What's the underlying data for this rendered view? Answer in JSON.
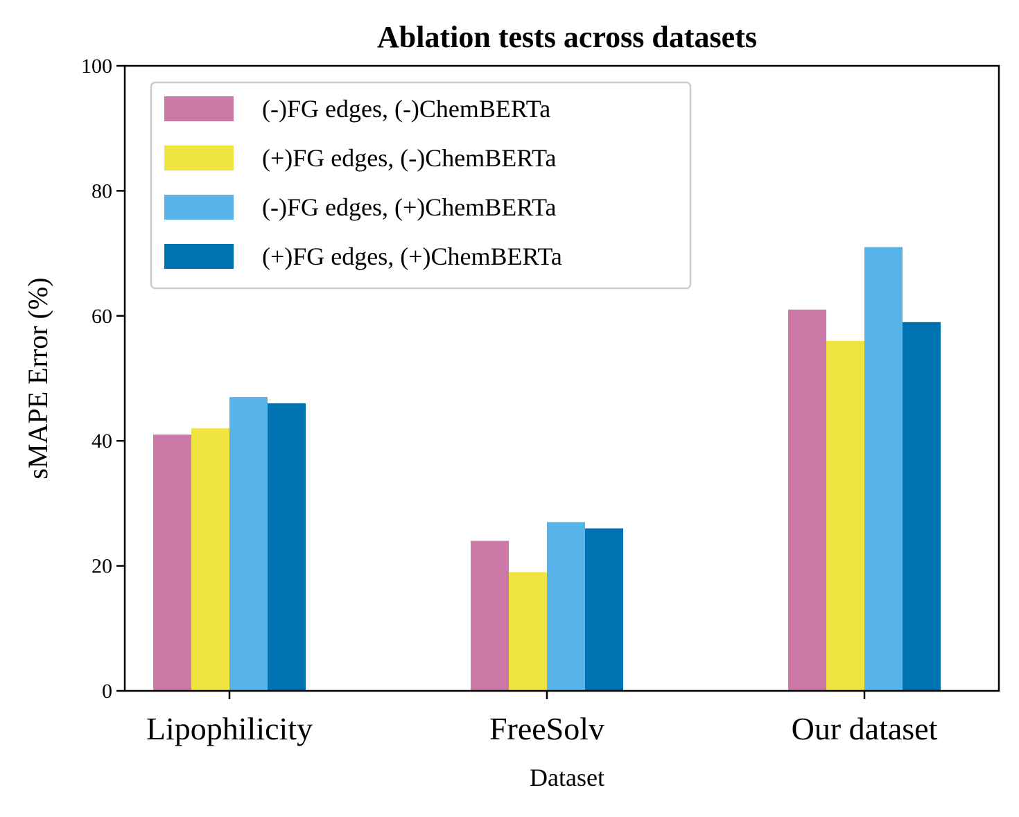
{
  "chart_data": {
    "type": "bar",
    "title": "Ablation tests across datasets",
    "xlabel": "Dataset",
    "ylabel": "sMAPE Error (%)",
    "ylim": [
      0,
      100
    ],
    "yticks": [
      "0",
      "20",
      "40",
      "60",
      "80",
      "100"
    ],
    "categories": [
      "Lipophilicity",
      "FreeSolv",
      "Our dataset"
    ],
    "legend_position": "top-left",
    "grid": false,
    "series": [
      {
        "name": "(-)FG edges, (-)ChemBERTa",
        "color": "#CC79A7",
        "values": [
          41,
          24,
          61
        ]
      },
      {
        "name": "(+)FG edges, (-)ChemBERTa",
        "color": "#F0E442",
        "values": [
          42,
          19,
          56
        ]
      },
      {
        "name": "(-)FG edges, (+)ChemBERTa",
        "color": "#56B4E9",
        "values": [
          47,
          27,
          71
        ]
      },
      {
        "name": "(+)FG edges, (+)ChemBERTa",
        "color": "#0072B2",
        "values": [
          46,
          26,
          59
        ]
      }
    ]
  }
}
